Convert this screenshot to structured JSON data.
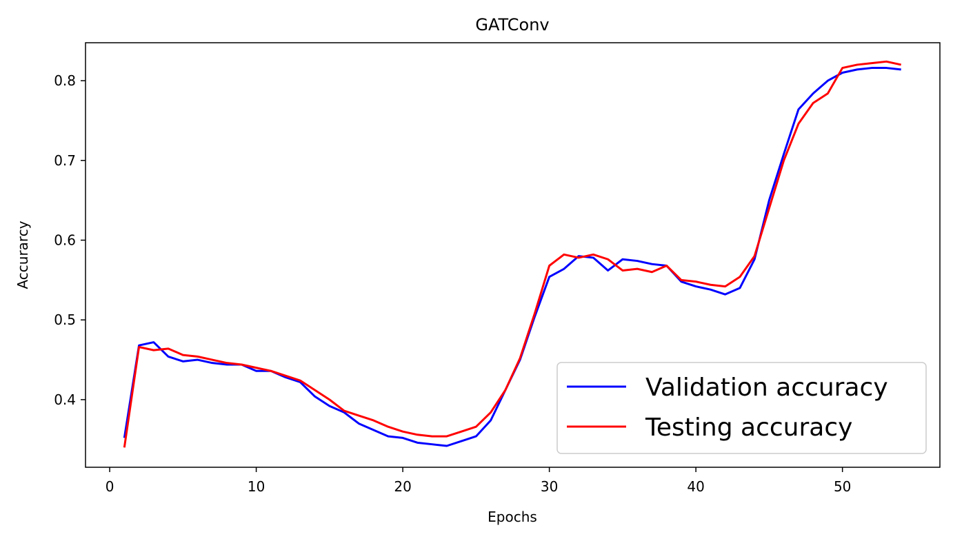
{
  "chart_data": {
    "type": "line",
    "title": "GATConv",
    "xlabel": "Epochs",
    "ylabel": "Accurarcy",
    "xlim": [
      -1.65,
      56.65
    ],
    "ylim": [
      0.3152,
      0.8476
    ],
    "xticks": [
      0,
      10,
      20,
      30,
      40,
      50
    ],
    "xtick_labels": [
      "0",
      "10",
      "20",
      "30",
      "40",
      "50"
    ],
    "yticks": [
      0.4,
      0.5,
      0.6,
      0.7,
      0.8
    ],
    "ytick_labels": [
      "0.4",
      "0.5",
      "0.6",
      "0.7",
      "0.8"
    ],
    "grid": false,
    "legend_position": "lower-right",
    "x": [
      1,
      2,
      3,
      4,
      5,
      6,
      7,
      8,
      9,
      10,
      11,
      12,
      13,
      14,
      15,
      16,
      17,
      18,
      19,
      20,
      21,
      22,
      23,
      24,
      25,
      26,
      27,
      28,
      29,
      30,
      31,
      32,
      33,
      34,
      35,
      36,
      37,
      38,
      39,
      40,
      41,
      42,
      43,
      44,
      45,
      46,
      47,
      48,
      49,
      50,
      51,
      52,
      53,
      54
    ],
    "series": [
      {
        "name": "Validation accuracy",
        "color": "#0000ff",
        "values": [
          0.352,
          0.468,
          0.472,
          0.454,
          0.448,
          0.45,
          0.446,
          0.444,
          0.444,
          0.436,
          0.436,
          0.428,
          0.422,
          0.404,
          0.392,
          0.384,
          0.37,
          0.362,
          0.354,
          0.352,
          0.346,
          0.344,
          0.342,
          0.348,
          0.354,
          0.374,
          0.412,
          0.45,
          0.504,
          0.554,
          0.564,
          0.58,
          0.578,
          0.562,
          0.576,
          0.574,
          0.57,
          0.568,
          0.548,
          0.542,
          0.538,
          0.532,
          0.54,
          0.576,
          0.65,
          0.708,
          0.764,
          0.784,
          0.8,
          0.81,
          0.814,
          0.816,
          0.816,
          0.814
        ]
      },
      {
        "name": "Testing accuracy",
        "color": "#ff0000",
        "values": [
          0.34,
          0.466,
          0.462,
          0.464,
          0.456,
          0.454,
          0.45,
          0.446,
          0.444,
          0.44,
          0.436,
          0.43,
          0.424,
          0.412,
          0.4,
          0.386,
          0.38,
          0.374,
          0.366,
          0.36,
          0.356,
          0.354,
          0.354,
          0.36,
          0.366,
          0.384,
          0.412,
          0.452,
          0.508,
          0.568,
          0.582,
          0.578,
          0.582,
          0.576,
          0.562,
          0.564,
          0.56,
          0.568,
          0.55,
          0.548,
          0.544,
          0.542,
          0.554,
          0.58,
          0.64,
          0.7,
          0.746,
          0.772,
          0.784,
          0.816,
          0.82,
          0.822,
          0.824,
          0.82
        ]
      }
    ]
  }
}
